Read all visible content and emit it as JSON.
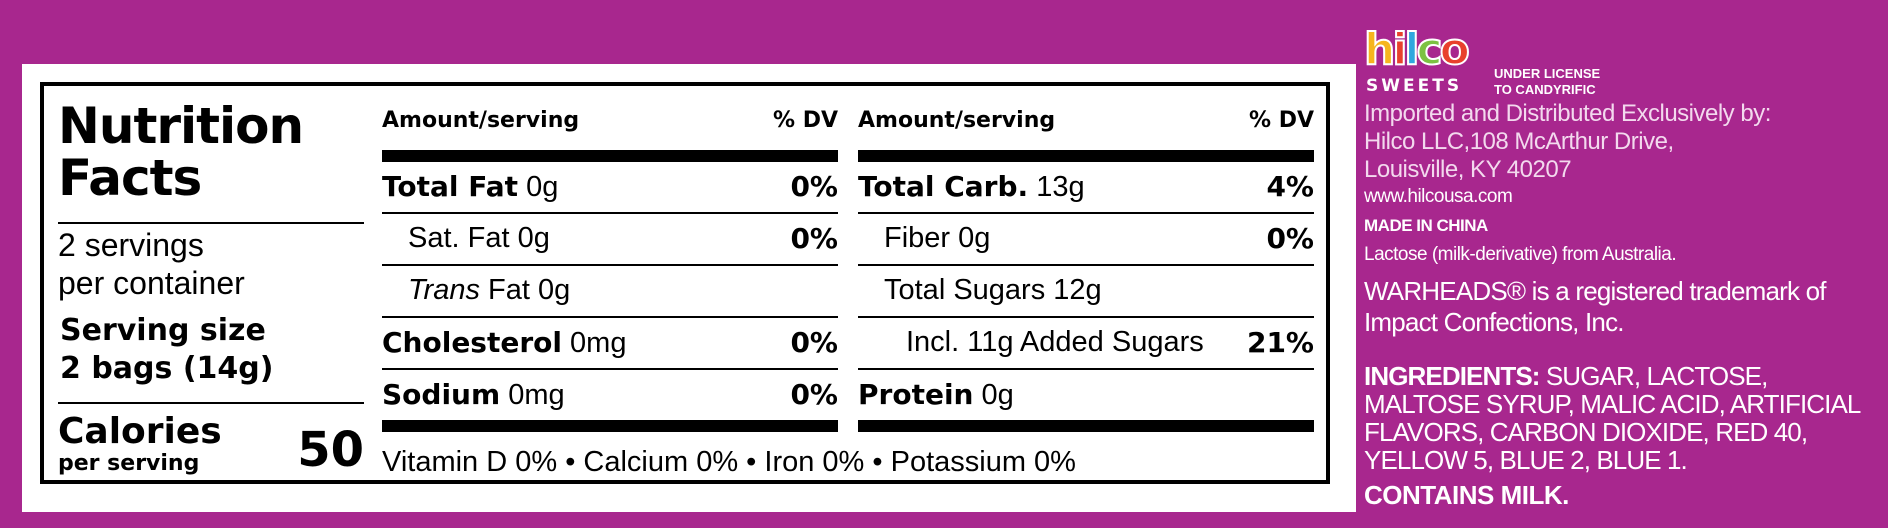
{
  "label": {
    "title": "Nutrition Facts",
    "servings": [
      "2 servings",
      "per container"
    ],
    "serving_size": [
      "Serving size",
      "2 bags (14g)"
    ],
    "calories_label": "Calories",
    "calories_sub": "per serving",
    "calories_value": "50",
    "header_amount": "Amount/serving",
    "header_dv": "% DV",
    "left_rows": [
      {
        "bold": "Total Fat",
        "value": " 0g",
        "dv": "0%"
      },
      {
        "bold": "",
        "value": "Sat. Fat 0g",
        "dv": "0%"
      },
      {
        "italic": "Trans",
        "value": " Fat 0g",
        "dv": ""
      },
      {
        "bold": "Cholesterol",
        "value": " 0mg",
        "dv": "0%"
      },
      {
        "bold": "Sodium",
        "value": " 0mg",
        "dv": "0%"
      }
    ],
    "right_rows": [
      {
        "bold": "Total Carb.",
        "value": " 13g",
        "dv": "4%"
      },
      {
        "bold": "",
        "value": "Fiber 0g",
        "dv": "0%"
      },
      {
        "bold": "",
        "value": "Total Sugars 12g",
        "dv": ""
      },
      {
        "bold": "",
        "value": "Incl. 11g Added Sugars",
        "dv": "21%"
      },
      {
        "bold": "Protein",
        "value": " 0g",
        "dv": ""
      }
    ],
    "vitamins": "Vitamin D 0% • Calcium 0% • Iron 0% • Potassium 0%"
  },
  "brand": {
    "logo_text": "hilco",
    "logo_letters": [
      {
        "ch": "h",
        "color": "#f6b51e"
      },
      {
        "ch": "i",
        "color": "#e8412c"
      },
      {
        "ch": "l",
        "color": "#2fa7de"
      },
      {
        "ch": "c",
        "color": "#7cc242"
      },
      {
        "ch": "o",
        "color": "#e8412c"
      }
    ],
    "sweets": "SWEETS",
    "license": [
      "UNDER LICENSE",
      "TO CANDYRIFIC"
    ]
  },
  "info": {
    "imported": "Imported and Distributed Exclusively by:",
    "address1": "Hilco LLC,108 McArthur Drive,",
    "address2": "Louisville, KY 40207",
    "website": "www.hilcousa.com",
    "made_in": "MADE IN CHINA",
    "lactose": "Lactose (milk-derivative) from Australia.",
    "trademark": "WARHEADS® is a registered trademark of Impact Confections, Inc.",
    "ingredients_label": "INGREDIENTS:",
    "ingredients": " SUGAR, LACTOSE, MALTOSE SYRUP, MALIC ACID, ARTIFICIAL FLAVORS, CARBON DIOXIDE, RED 40, YELLOW 5, BLUE 2, BLUE 1.",
    "contains": "CONTAINS MILK."
  }
}
